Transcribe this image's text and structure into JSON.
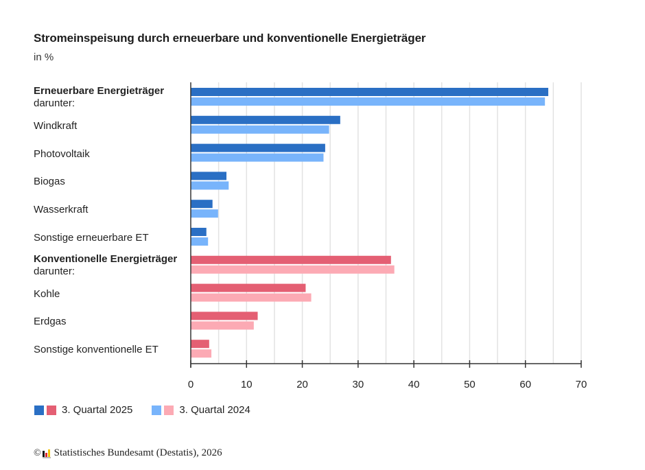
{
  "header": {
    "title": "Stromeinspeisung durch erneuerbare und konventionelle Energieträger",
    "subtitle": "in %"
  },
  "colors": {
    "renewable_2025": "#2a6fc4",
    "renewable_2024": "#78b4fb",
    "conventional_2025": "#e45f73",
    "conventional_2024": "#fcaab4",
    "grid": "#e2e2e2",
    "axis": "#333333"
  },
  "legend": {
    "items": [
      {
        "label": "3. Quartal 2025",
        "swatches": [
          "#2a6fc4",
          "#e45f73"
        ]
      },
      {
        "label": "3. Quartal 2024",
        "swatches": [
          "#78b4fb",
          "#fcaab4"
        ]
      }
    ]
  },
  "footer": {
    "copyright_symbol": "©",
    "source": "Statistisches Bundesamt (Destatis), 2026"
  },
  "chart_data": {
    "type": "bar",
    "orientation": "horizontal",
    "title": "Stromeinspeisung durch erneuerbare und konventionelle Energieträger",
    "subtitle": "in %",
    "xlabel": "",
    "ylabel": "",
    "xlim": [
      0,
      70
    ],
    "xticks": [
      0,
      10,
      20,
      30,
      40,
      50,
      60,
      70
    ],
    "grid_step": 5,
    "grid": true,
    "legend_position": "bottom-left",
    "categories": [
      {
        "label": "Erneuerbare Energieträger",
        "sublabel": "darunter:",
        "bold": true,
        "group": "renewable"
      },
      {
        "label": "Windkraft",
        "sublabel": "",
        "bold": false,
        "group": "renewable"
      },
      {
        "label": "Photovoltaik",
        "sublabel": "",
        "bold": false,
        "group": "renewable"
      },
      {
        "label": "Biogas",
        "sublabel": "",
        "bold": false,
        "group": "renewable"
      },
      {
        "label": "Wasserkraft",
        "sublabel": "",
        "bold": false,
        "group": "renewable"
      },
      {
        "label": "Sonstige erneuerbare ET",
        "sublabel": "",
        "bold": false,
        "group": "renewable"
      },
      {
        "label": "Konventionelle Energieträger",
        "sublabel": "darunter:",
        "bold": true,
        "group": "conventional"
      },
      {
        "label": "Kohle",
        "sublabel": "",
        "bold": false,
        "group": "conventional"
      },
      {
        "label": "Erdgas",
        "sublabel": "",
        "bold": false,
        "group": "conventional"
      },
      {
        "label": "Sonstige konventionelle ET",
        "sublabel": "",
        "bold": false,
        "group": "conventional"
      }
    ],
    "series": [
      {
        "name": "3. Quartal 2025",
        "values": [
          64.1,
          26.8,
          24.1,
          6.4,
          3.9,
          2.8,
          35.9,
          20.6,
          12.0,
          3.3
        ]
      },
      {
        "name": "3. Quartal 2024",
        "values": [
          63.5,
          24.8,
          23.8,
          6.8,
          4.9,
          3.1,
          36.5,
          21.6,
          11.3,
          3.7
        ]
      }
    ]
  }
}
